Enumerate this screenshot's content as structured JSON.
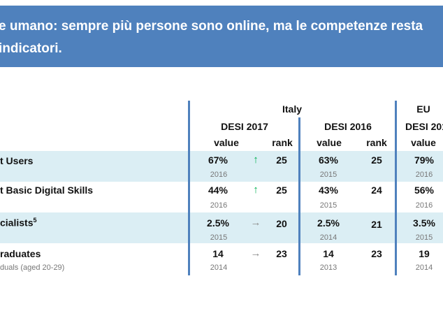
{
  "banner": {
    "line1": "e umano: sempre più persone sono online, ma le competenze resta",
    "line2": "indicatori."
  },
  "headers": {
    "country": "Italy",
    "eu": "EU",
    "desi_2017": "DESI 2017",
    "desi_2016": "DESI 2016",
    "eu_desi": "DESI 201",
    "value": "value",
    "rank": "rank"
  },
  "rows": [
    {
      "label": "t Users",
      "sublabel": "",
      "v2017": "67%",
      "y2017": "2016",
      "arrow": "up",
      "arrow_glyph": "↑",
      "rank2017": "25",
      "v2016": "63%",
      "y2016": "2015",
      "rank2016": "25",
      "eu_value": "79%",
      "eu_year": "2016"
    },
    {
      "label": "t Basic Digital Skills",
      "sublabel": "",
      "v2017": "44%",
      "y2017": "2016",
      "arrow": "up",
      "arrow_glyph": "↑",
      "rank2017": "25",
      "v2016": "43%",
      "y2016": "2015",
      "rank2016": "24",
      "eu_value": "56%",
      "eu_year": "2016"
    },
    {
      "label": "cialists",
      "label_sup": "5",
      "sublabel": "",
      "v2017": "2.5%",
      "y2017": "2015",
      "arrow": "right",
      "arrow_glyph": "→",
      "rank2017": "20",
      "v2016": "2.5%",
      "y2016": "2014",
      "rank2016": "21",
      "eu_value": "3.5%",
      "eu_year": "2015"
    },
    {
      "label": "raduates",
      "sublabel": "duals (aged 20-29)",
      "v2017": "14",
      "y2017": "2014",
      "arrow": "right",
      "arrow_glyph": "→",
      "rank2017": "23",
      "v2016": "14",
      "y2016": "2013",
      "rank2016": "23",
      "eu_value": "19",
      "eu_year": "2014"
    }
  ]
}
